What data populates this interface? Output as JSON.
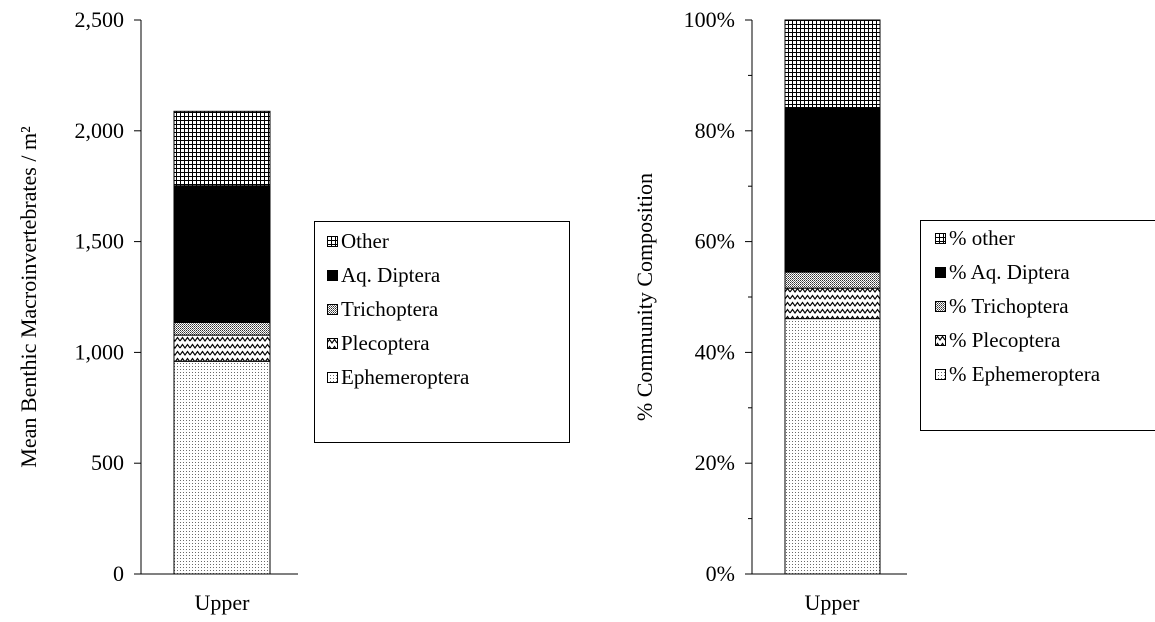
{
  "chart_data": [
    {
      "type": "bar",
      "stacked": true,
      "categories": [
        "Upper"
      ],
      "ylabel": "Mean Benthic Macroinvertebrates / m²",
      "ylim": [
        0,
        2500
      ],
      "yticks": [
        "0",
        "500",
        "1,000",
        "1,500",
        "2,000",
        "2,500"
      ],
      "tick_values": [
        0,
        500,
        1000,
        1500,
        2000,
        2500
      ],
      "legend_position": "right",
      "grid": false,
      "series": [
        {
          "name": "Ephemeroptera",
          "values": [
            960
          ],
          "pattern": "dots"
        },
        {
          "name": "Plecoptera",
          "values": [
            118
          ],
          "pattern": "zigzag"
        },
        {
          "name": "Trichoptera",
          "values": [
            57
          ],
          "pattern": "dense-dots"
        },
        {
          "name": "Aq. Diptera",
          "values": [
            617
          ],
          "pattern": "solid"
        },
        {
          "name": "Other",
          "values": [
            336
          ],
          "pattern": "grid"
        }
      ],
      "legend_order": [
        "Other",
        "Aq. Diptera",
        "Trichoptera",
        "Plecoptera",
        "Ephemeroptera"
      ]
    },
    {
      "type": "bar",
      "stacked": true,
      "categories": [
        "Upper"
      ],
      "ylabel": "% Community Composition",
      "ylim": [
        0,
        100
      ],
      "yticks": [
        "0%",
        "20%",
        "40%",
        "60%",
        "80%",
        "100%"
      ],
      "tick_values": [
        0,
        20,
        40,
        60,
        80,
        100
      ],
      "legend_position": "right",
      "grid": false,
      "series": [
        {
          "name": "% Ephemeroptera",
          "values": [
            46.1
          ],
          "pattern": "dots"
        },
        {
          "name": "% Plecoptera",
          "values": [
            5.5
          ],
          "pattern": "zigzag"
        },
        {
          "name": "% Trichoptera",
          "values": [
            2.9
          ],
          "pattern": "dense-dots"
        },
        {
          "name": "% Aq. Diptera",
          "values": [
            29.7
          ],
          "pattern": "solid"
        },
        {
          "name": "% other",
          "values": [
            15.8
          ],
          "pattern": "grid"
        }
      ],
      "legend_order": [
        "% other",
        "% Aq. Diptera",
        "% Trichoptera",
        "% Plecoptera",
        "% Ephemeroptera"
      ]
    }
  ]
}
